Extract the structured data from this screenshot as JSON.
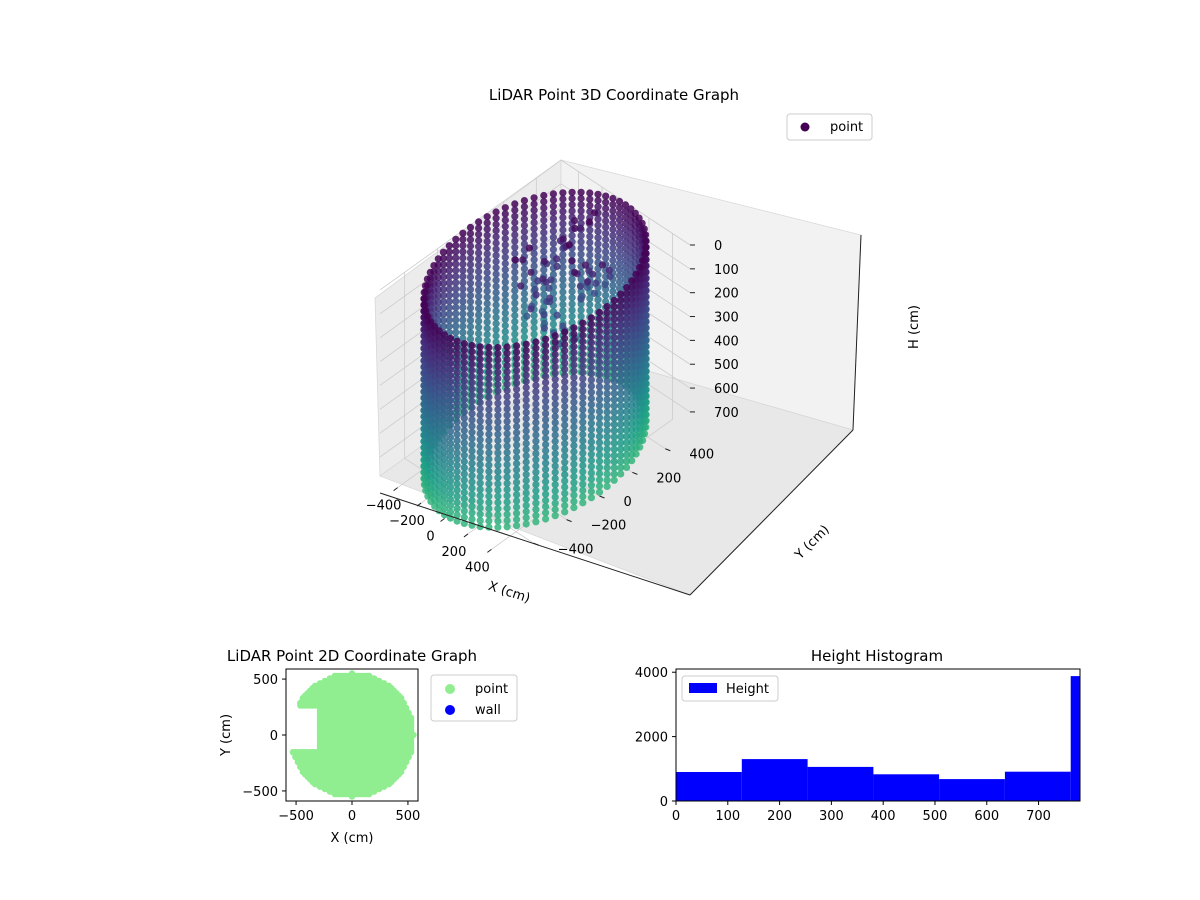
{
  "chart_data": [
    {
      "type": "scatter3d",
      "title": "LiDAR Point 3D Coordinate Graph",
      "xlabel": "X (cm)",
      "ylabel": "Y (cm)",
      "zlabel": "H (cm)",
      "xlim": [
        -550,
        550
      ],
      "ylim": [
        -550,
        550
      ],
      "zlim": [
        0,
        780
      ],
      "z_inverted": true,
      "xticks": [
        "−400",
        "−200",
        "0",
        "200",
        "400"
      ],
      "yticks": [
        "−400",
        "−200",
        "0",
        "200",
        "400"
      ],
      "zticks": [
        "0",
        "100",
        "200",
        "300",
        "400",
        "500",
        "600",
        "700"
      ],
      "grid": true,
      "legend": {
        "position": "top-right",
        "entries": [
          "point"
        ]
      },
      "colormap": "viridis",
      "series": [
        {
          "name": "point",
          "shape": "cylindrical wall",
          "radius": 550,
          "height_range": [
            0,
            780
          ],
          "color": "#440154"
        }
      ]
    },
    {
      "type": "scatter",
      "title": "LiDAR Point 2D Coordinate Graph",
      "xlabel": "X (cm)",
      "ylabel": "Y (cm)",
      "xlim": [
        -590,
        590
      ],
      "ylim": [
        -590,
        590
      ],
      "xticks": [
        "−500",
        "0",
        "500"
      ],
      "yticks": [
        "500",
        "0",
        "−500"
      ],
      "legend": {
        "position": "outside right",
        "entries": [
          "point",
          "wall"
        ]
      },
      "series": [
        {
          "name": "point",
          "color": "#90ee90",
          "shape": "filled disk",
          "radius": 550
        },
        {
          "name": "wall",
          "color": "#0000ff"
        }
      ]
    },
    {
      "type": "histogram",
      "title": "Height Histogram",
      "xlabel": "",
      "ylabel": "",
      "xlim": [
        0,
        780
      ],
      "ylim": [
        0,
        4100
      ],
      "xticks": [
        "0",
        "100",
        "200",
        "300",
        "400",
        "500",
        "600",
        "700"
      ],
      "yticks": [
        "0",
        "2000",
        "4000"
      ],
      "legend": {
        "position": "top-left",
        "entries": [
          "Height"
        ]
      },
      "bins": [
        {
          "start": 0,
          "end": 127,
          "count": 900
        },
        {
          "start": 127,
          "end": 254,
          "count": 1300
        },
        {
          "start": 254,
          "end": 381,
          "count": 1060
        },
        {
          "start": 381,
          "end": 508,
          "count": 830
        },
        {
          "start": 508,
          "end": 635,
          "count": 680
        },
        {
          "start": 635,
          "end": 762,
          "count": 910
        },
        {
          "start": 762,
          "end": 780,
          "count": 3880
        }
      ],
      "color": "#0000ff"
    }
  ],
  "colors": {
    "pane_left": "#ececec",
    "pane_right": "#f2f2f2",
    "pane_floor": "#e6e6e6",
    "grid": "#cccccc",
    "point_2d": "#90ee90",
    "wall": "#0000ff",
    "hist": "#0000ff",
    "top_color": "#440154"
  }
}
